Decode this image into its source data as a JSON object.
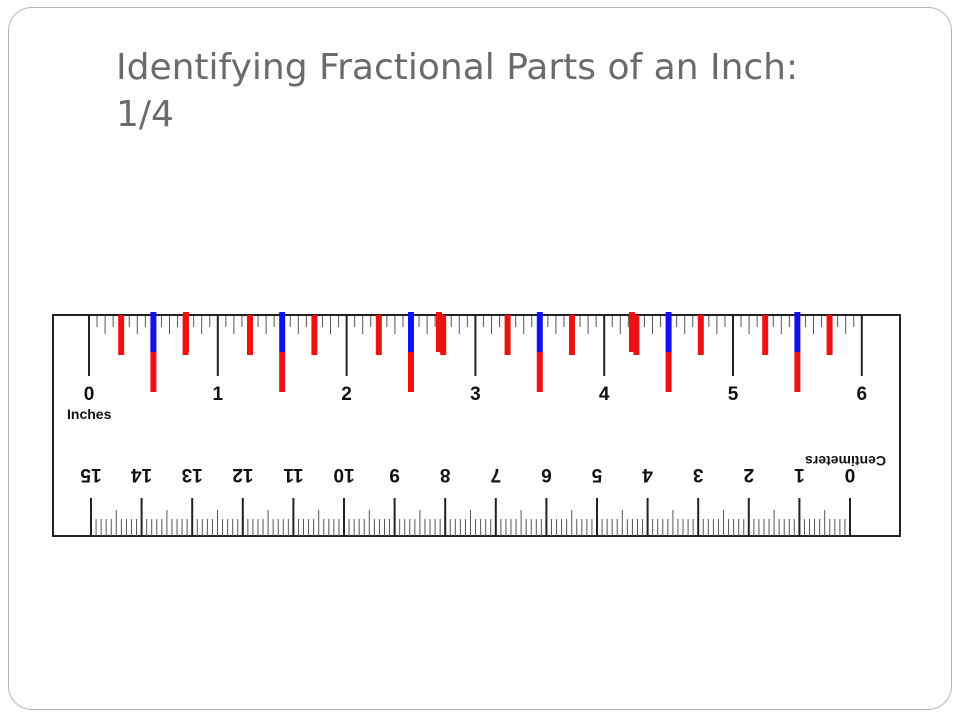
{
  "slide": {
    "title": "Identifying Fractional Parts of an Inch:\n1/4"
  },
  "ruler": {
    "inch_labels": [
      "0",
      "1",
      "2",
      "3",
      "4",
      "5",
      "6"
    ],
    "inch_unit_label": "Inches",
    "centimeter_labels": [
      "15",
      "14",
      "13",
      "12",
      "11",
      "10",
      "9",
      "8",
      "7",
      "6",
      "5",
      "4",
      "3",
      "2",
      "1",
      "0"
    ],
    "centimeter_unit_label": "Centimeters",
    "inch_ticks_per_inch": 16,
    "highlights": {
      "quarter_inch_color": "#ee1111",
      "half_inch_color": "#1111ee",
      "quarter_inch_fraction": "1/4"
    },
    "colors": {
      "outline": "#222222",
      "tick": "#555555",
      "text": "#111111"
    }
  }
}
